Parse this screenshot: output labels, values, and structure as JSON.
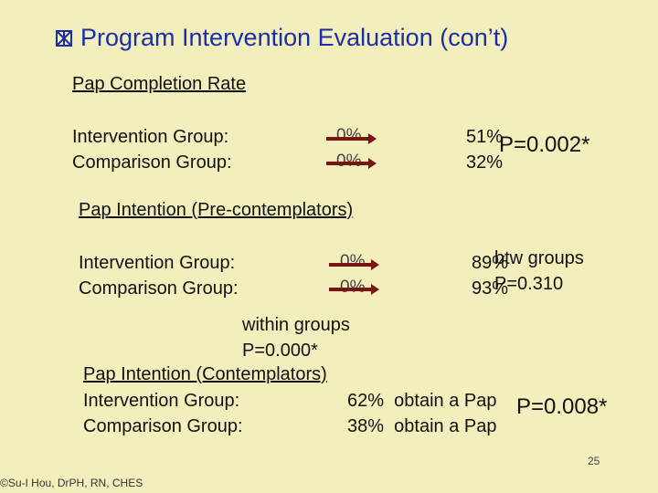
{
  "title": "Program Intervention Evaluation (con’t)",
  "icon": "cross-box-icon",
  "accent_color": "#1a2ea8",
  "arrow_color": "#7a1414",
  "section1": {
    "heading": "Pap Completion Rate",
    "row1_label": "Intervention Group:",
    "row2_label": "Comparison Group:",
    "row1_pre": "0%",
    "row2_pre": "0%",
    "row1_post": "51%",
    "row2_post": "32%",
    "p_value": "P=0.002*"
  },
  "section2": {
    "heading": "Pap Intention (Pre-contemplators)",
    "row1_label": "Intervention Group:",
    "row2_label": "Comparison Group:",
    "row1_pre": "0%",
    "row2_pre": "0%",
    "row1_post": "89%",
    "row2_post": "93%",
    "btw_label": "btw groups",
    "btw_p": "P=0.310",
    "within_label": "within groups",
    "within_p": "P=0.000*"
  },
  "section3": {
    "heading": "Pap Intention (Contemplators)",
    "row1_label": "Intervention Group:",
    "row2_label": "Comparison Group:",
    "row1_value": "62%  obtain a Pap",
    "row2_value": "38%  obtain a Pap",
    "p_value": "P=0.008*"
  },
  "page_number": "25",
  "footer": "©Su-I Hou, DrPH, RN, CHES"
}
